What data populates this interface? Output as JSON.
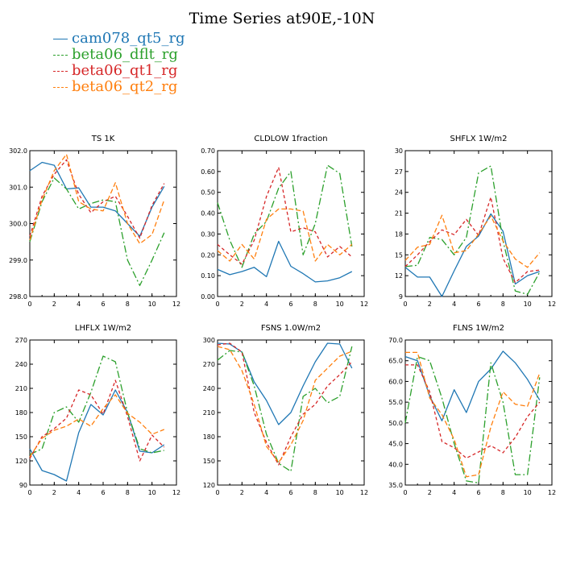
{
  "title": "Time Series at90E,-10N",
  "legend": [
    {
      "name": "cam078_qt5_rg",
      "color": "#1f77b4",
      "dash": "solid"
    },
    {
      "name": "beta06_dflt_rg",
      "color": "#2ca02c",
      "dash": "long-dash"
    },
    {
      "name": "beta06_qt1_rg",
      "color": "#d62728",
      "dash": "short-dash"
    },
    {
      "name": "beta06_qt2_rg",
      "color": "#ff7f0e",
      "dash": "dash"
    }
  ],
  "chart_data": [
    {
      "type": "line",
      "title": "TS   1K",
      "x": [
        0,
        1,
        2,
        3,
        4,
        5,
        6,
        7,
        8,
        9,
        10,
        11
      ],
      "xlim": [
        0,
        12
      ],
      "xticks": [
        "0",
        "2",
        "4",
        "6",
        "8",
        "10",
        "12"
      ],
      "ylim": [
        298.0,
        302.0
      ],
      "yticks": [
        "298.0",
        "299.0",
        "300.0",
        "301.0",
        "302.0"
      ],
      "series": [
        {
          "name": "cam078_qt5_rg",
          "values": [
            301.45,
            301.68,
            301.6,
            300.95,
            300.98,
            300.45,
            300.45,
            300.35,
            300.0,
            299.65,
            300.45,
            301.02
          ]
        },
        {
          "name": "beta06_dflt_rg",
          "values": [
            299.5,
            300.6,
            301.25,
            300.95,
            300.4,
            300.55,
            300.65,
            300.6,
            299.0,
            298.3,
            299.0,
            299.75
          ]
        },
        {
          "name": "beta06_qt1_rg",
          "values": [
            299.65,
            300.75,
            301.35,
            301.75,
            300.8,
            300.3,
            300.6,
            300.75,
            300.2,
            299.6,
            300.5,
            301.1
          ]
        },
        {
          "name": "beta06_qt2_rg",
          "values": [
            299.55,
            300.65,
            301.45,
            301.9,
            300.6,
            300.4,
            300.35,
            301.12,
            300.0,
            299.45,
            299.7,
            300.65
          ]
        }
      ]
    },
    {
      "type": "line",
      "title": "CLDLOW   1fraction",
      "x": [
        0,
        1,
        2,
        3,
        4,
        5,
        6,
        7,
        8,
        9,
        10,
        11
      ],
      "xlim": [
        0,
        12
      ],
      "xticks": [
        "0",
        "2",
        "4",
        "6",
        "8",
        "10",
        "12"
      ],
      "ylim": [
        0.0,
        0.7
      ],
      "yticks": [
        "0.00",
        "0.10",
        "0.20",
        "0.30",
        "0.40",
        "0.50",
        "0.60",
        "0.70"
      ],
      "series": [
        {
          "name": "cam078_qt5_rg",
          "values": [
            0.13,
            0.105,
            0.12,
            0.14,
            0.095,
            0.265,
            0.145,
            0.11,
            0.07,
            0.075,
            0.09,
            0.12
          ]
        },
        {
          "name": "beta06_dflt_rg",
          "values": [
            0.45,
            0.27,
            0.14,
            0.3,
            0.36,
            0.52,
            0.6,
            0.2,
            0.35,
            0.63,
            0.59,
            0.24
          ]
        },
        {
          "name": "beta06_qt1_rg",
          "values": [
            0.25,
            0.2,
            0.155,
            0.27,
            0.48,
            0.62,
            0.31,
            0.33,
            0.31,
            0.19,
            0.24,
            0.19
          ]
        },
        {
          "name": "beta06_qt2_rg",
          "values": [
            0.22,
            0.17,
            0.25,
            0.18,
            0.37,
            0.42,
            0.42,
            0.41,
            0.17,
            0.25,
            0.2,
            0.25
          ]
        }
      ]
    },
    {
      "type": "line",
      "title": "SHFLX   1W/m2",
      "x": [
        0,
        1,
        2,
        3,
        4,
        5,
        6,
        7,
        8,
        9,
        10,
        11
      ],
      "xlim": [
        0,
        12
      ],
      "xticks": [
        "0",
        "2",
        "4",
        "6",
        "8",
        "10",
        "12"
      ],
      "ylim": [
        9,
        30
      ],
      "yticks": [
        "9",
        "12",
        "15",
        "18",
        "21",
        "24",
        "27",
        "30"
      ],
      "series": [
        {
          "name": "cam078_qt5_rg",
          "values": [
            13.2,
            11.8,
            11.8,
            9.0,
            12.7,
            16.2,
            17.7,
            20.9,
            18.4,
            10.8,
            12.0,
            12.6
          ]
        },
        {
          "name": "beta06_dflt_rg",
          "values": [
            13.3,
            13.5,
            17.5,
            17.2,
            15.0,
            17.5,
            26.8,
            27.8,
            17.0,
            9.8,
            9.3,
            12.5
          ]
        },
        {
          "name": "beta06_qt1_rg",
          "values": [
            13.3,
            15.0,
            16.9,
            18.6,
            17.9,
            20.1,
            17.8,
            23.3,
            14.5,
            11.0,
            12.6,
            12.8
          ]
        },
        {
          "name": "beta06_qt2_rg",
          "values": [
            14.2,
            16.1,
            16.5,
            20.7,
            15.3,
            15.6,
            18.0,
            20.6,
            17.0,
            14.4,
            13.2,
            15.3
          ]
        }
      ]
    },
    {
      "type": "line",
      "title": "LHFLX   1W/m2",
      "x": [
        0,
        1,
        2,
        3,
        4,
        5,
        6,
        7,
        8,
        9,
        10,
        11
      ],
      "xlim": [
        0,
        12
      ],
      "xticks": [
        "0",
        "2",
        "4",
        "6",
        "8",
        "10",
        "12"
      ],
      "ylim": [
        90,
        270
      ],
      "yticks": [
        "90",
        "120",
        "150",
        "180",
        "210",
        "240",
        "270"
      ],
      "series": [
        {
          "name": "cam078_qt5_rg",
          "values": [
            135,
            108,
            103,
            95,
            155,
            190,
            177,
            208,
            180,
            132,
            130,
            140
          ]
        },
        {
          "name": "beta06_dflt_rg",
          "values": [
            128,
            135,
            180,
            187,
            168,
            205,
            250,
            243,
            180,
            135,
            130,
            133
          ]
        },
        {
          "name": "beta06_qt1_rg",
          "values": [
            123,
            150,
            160,
            173,
            208,
            202,
            178,
            220,
            175,
            120,
            152,
            137
          ]
        },
        {
          "name": "beta06_qt2_rg",
          "values": [
            125,
            148,
            158,
            163,
            172,
            163,
            185,
            202,
            179,
            168,
            153,
            159
          ]
        }
      ]
    },
    {
      "type": "line",
      "title": "FSNS   1.0W/m2",
      "x": [
        0,
        1,
        2,
        3,
        4,
        5,
        6,
        7,
        8,
        9,
        10,
        11
      ],
      "xlim": [
        0,
        12
      ],
      "xticks": [
        "0",
        "2",
        "4",
        "6",
        "8",
        "10",
        "12"
      ],
      "ylim": [
        120,
        300
      ],
      "yticks": [
        "120",
        "150",
        "180",
        "210",
        "240",
        "270",
        "300"
      ],
      "series": [
        {
          "name": "cam078_qt5_rg",
          "values": [
            296,
            295,
            285,
            248,
            225,
            195,
            210,
            243,
            273,
            296,
            295,
            265
          ]
        },
        {
          "name": "beta06_dflt_rg",
          "values": [
            275,
            287,
            285,
            243,
            183,
            147,
            137,
            230,
            240,
            222,
            230,
            292
          ]
        },
        {
          "name": "beta06_qt1_rg",
          "values": [
            294,
            296,
            285,
            210,
            173,
            145,
            180,
            208,
            220,
            243,
            257,
            273
          ]
        },
        {
          "name": "beta06_qt2_rg",
          "values": [
            292,
            288,
            262,
            220,
            168,
            148,
            170,
            200,
            250,
            265,
            280,
            286
          ]
        }
      ]
    },
    {
      "type": "line",
      "title": "FLNS   1W/m2",
      "x": [
        0,
        1,
        2,
        3,
        4,
        5,
        6,
        7,
        8,
        9,
        10,
        11
      ],
      "xlim": [
        0,
        12
      ],
      "xticks": [
        "0",
        "2",
        "4",
        "6",
        "8",
        "10",
        "12"
      ],
      "ylim": [
        35.0,
        70.0
      ],
      "yticks": [
        "35.0",
        "40.0",
        "45.0",
        "50.0",
        "55.0",
        "60.0",
        "65.0",
        "70.0"
      ],
      "series": [
        {
          "name": "cam078_qt5_rg",
          "values": [
            66.0,
            65.0,
            56.5,
            50.5,
            58.0,
            52.5,
            60.0,
            63.0,
            67.3,
            64.5,
            60.5,
            55.5
          ]
        },
        {
          "name": "beta06_dflt_rg",
          "values": [
            50.0,
            66.0,
            65.0,
            56.0,
            45.0,
            36.0,
            35.5,
            64.5,
            55.0,
            37.5,
            37.5,
            61.0
          ]
        },
        {
          "name": "beta06_qt1_rg",
          "values": [
            64.0,
            64.0,
            57.5,
            45.5,
            44.0,
            41.5,
            43.0,
            44.5,
            42.8,
            46.5,
            51.5,
            55.0
          ]
        },
        {
          "name": "beta06_qt2_rg",
          "values": [
            67.0,
            67.0,
            56.0,
            52.0,
            46.0,
            37.0,
            37.5,
            49.0,
            57.5,
            54.5,
            54.0,
            62.0
          ]
        }
      ]
    }
  ]
}
